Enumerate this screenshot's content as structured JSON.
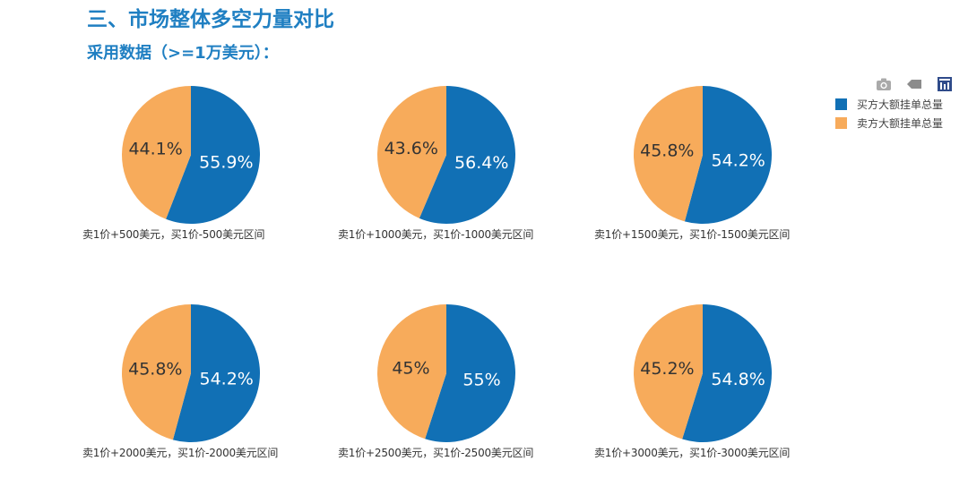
{
  "header": {
    "title": "三、市场整体多空力量对比",
    "subtitle": "采用数据（>=1万美元）："
  },
  "toolbar": {
    "icons": [
      "camera-icon",
      "eraser-icon",
      "data-view-icon"
    ],
    "icon_color": "#999999",
    "active_color": "#2f4b8a"
  },
  "legend": {
    "items": [
      {
        "label": "买方大额挂单总量",
        "color": "#1170b5"
      },
      {
        "label": "卖方大额挂单总量",
        "color": "#f7ab5b"
      }
    ]
  },
  "chart_data": [
    {
      "type": "pie",
      "caption": "卖1价+500美元，买1价-500美元区间",
      "slices": [
        {
          "name": "买方大额挂单总量",
          "value": 55.9,
          "label": "55.9%"
        },
        {
          "name": "卖方大额挂单总量",
          "value": 44.1,
          "label": "44.1%"
        }
      ]
    },
    {
      "type": "pie",
      "caption": "卖1价+1000美元，买1价-1000美元区间",
      "slices": [
        {
          "name": "买方大额挂单总量",
          "value": 56.4,
          "label": "56.4%"
        },
        {
          "name": "卖方大额挂单总量",
          "value": 43.6,
          "label": "43.6%"
        }
      ]
    },
    {
      "type": "pie",
      "caption": "卖1价+1500美元，买1价-1500美元区间",
      "slices": [
        {
          "name": "买方大额挂单总量",
          "value": 54.2,
          "label": "54.2%"
        },
        {
          "name": "卖方大额挂单总量",
          "value": 45.8,
          "label": "45.8%"
        }
      ]
    },
    {
      "type": "pie",
      "caption": "卖1价+2000美元，买1价-2000美元区间",
      "slices": [
        {
          "name": "买方大额挂单总量",
          "value": 54.2,
          "label": "54.2%"
        },
        {
          "name": "卖方大额挂单总量",
          "value": 45.8,
          "label": "45.8%"
        }
      ]
    },
    {
      "type": "pie",
      "caption": "卖1价+2500美元，买1价-2500美元区间",
      "slices": [
        {
          "name": "买方大额挂单总量",
          "value": 55,
          "label": "55%"
        },
        {
          "name": "卖方大额挂单总量",
          "value": 45,
          "label": "45%"
        }
      ]
    },
    {
      "type": "pie",
      "caption": "卖1价+3000美元，买1价-3000美元区间",
      "slices": [
        {
          "name": "买方大额挂单总量",
          "value": 54.8,
          "label": "54.8%"
        },
        {
          "name": "卖方大额挂单总量",
          "value": 45.2,
          "label": "45.2%"
        }
      ]
    }
  ]
}
